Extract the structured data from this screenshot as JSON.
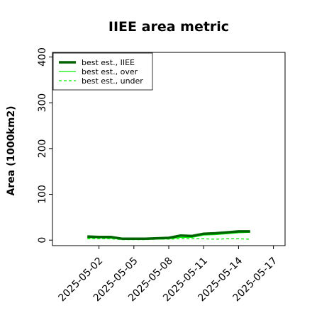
{
  "chart_data": {
    "type": "line",
    "title": "IIEE area metric",
    "xlabel": "",
    "ylabel": "Area (1000km2)",
    "ylim": [
      -12,
      410
    ],
    "yticks": [
      0,
      100,
      200,
      300,
      400
    ],
    "xlim": [
      "2025-04-28",
      "2025-05-18"
    ],
    "xticks": [
      "2025-05-02",
      "2025-05-05",
      "2025-05-08",
      "2025-05-11",
      "2025-05-14",
      "2025-05-17"
    ],
    "grid": false,
    "legend_position": "top-left",
    "x": [
      "2025-05-01",
      "2025-05-02",
      "2025-05-03",
      "2025-05-04",
      "2025-05-05",
      "2025-05-06",
      "2025-05-07",
      "2025-05-08",
      "2025-05-09",
      "2025-05-10",
      "2025-05-11",
      "2025-05-12",
      "2025-05-13",
      "2025-05-14",
      "2025-05-15"
    ],
    "series": [
      {
        "name": "best est., IIEE",
        "style": "solid-thick",
        "color": "#006400",
        "values": [
          8,
          7,
          7,
          3,
          3,
          3,
          4,
          5,
          10,
          9,
          14,
          15,
          17,
          19,
          19
        ]
      },
      {
        "name": "best est., over",
        "style": "solid",
        "color": "#00ee00",
        "values": [
          5,
          5,
          4,
          2,
          2,
          2,
          2,
          3,
          6,
          6,
          11,
          12,
          14,
          16,
          17
        ]
      },
      {
        "name": "best est., under",
        "style": "dashed",
        "color": "#00ee00",
        "values": [
          3,
          3,
          3,
          1,
          1,
          1,
          2,
          2,
          3,
          3,
          3,
          2,
          3,
          3,
          2
        ]
      }
    ]
  }
}
